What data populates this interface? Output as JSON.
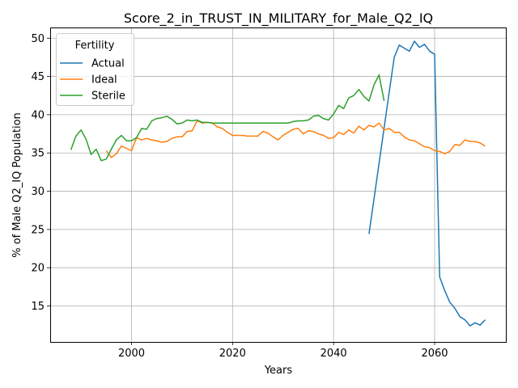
{
  "chart_data": {
    "type": "line",
    "title": "Score_2_in_TRUST_IN_MILITARY_for_Male_Q2_IQ",
    "xlabel": "Years",
    "ylabel": "% of Male Q2_IQ Population",
    "xlim": [
      1983.9,
      2074.1
    ],
    "ylim": [
      10.3,
      51.4
    ],
    "xticks": [
      2000,
      2020,
      2040,
      2060
    ],
    "yticks": [
      15,
      20,
      25,
      30,
      35,
      40,
      45,
      50
    ],
    "grid": true,
    "legend": {
      "title": "Fertility",
      "position": "top-left"
    },
    "series": [
      {
        "name": "Actual",
        "color": "#1f77b4",
        "x": [
          2047,
          2048,
          2049,
          2050,
          2051,
          2052,
          2053,
          2054,
          2055,
          2056,
          2057,
          2058,
          2059,
          2060,
          2061,
          2062,
          2063,
          2064,
          2065,
          2066,
          2067,
          2068,
          2069,
          2070
        ],
        "y": [
          24.4,
          29.0,
          33.6,
          38.3,
          42.9,
          47.5,
          49.1,
          48.7,
          48.3,
          49.6,
          48.8,
          49.2,
          48.3,
          47.9,
          18.8,
          17.0,
          15.5,
          14.7,
          13.6,
          13.2,
          12.4,
          12.8,
          12.5,
          13.2
        ]
      },
      {
        "name": "Ideal",
        "color": "#ff7f0e",
        "x": [
          1995,
          1996,
          1997,
          1998,
          1999,
          2000,
          2001,
          2002,
          2003,
          2004,
          2005,
          2006,
          2007,
          2008,
          2009,
          2010,
          2011,
          2012,
          2013,
          2014,
          2015,
          2016,
          2017,
          2018,
          2019,
          2020,
          2021,
          2022,
          2023,
          2024,
          2025,
          2026,
          2027,
          2028,
          2029,
          2030,
          2031,
          2032,
          2033,
          2034,
          2035,
          2036,
          2037,
          2038,
          2039,
          2040,
          2041,
          2042,
          2043,
          2044,
          2045,
          2046,
          2047,
          2048,
          2049,
          2050,
          2051,
          2052,
          2053,
          2054,
          2055,
          2056,
          2057,
          2058,
          2059,
          2060,
          2061,
          2062,
          2063,
          2064,
          2065,
          2066,
          2067,
          2068,
          2069,
          2070
        ],
        "y": [
          35.3,
          34.4,
          34.9,
          35.9,
          35.6,
          35.3,
          37.0,
          36.7,
          36.9,
          36.7,
          36.6,
          36.4,
          36.5,
          36.9,
          37.1,
          37.1,
          37.8,
          37.9,
          39.2,
          38.9,
          39.0,
          38.9,
          38.4,
          38.2,
          37.7,
          37.3,
          37.3,
          37.3,
          37.2,
          37.2,
          37.2,
          37.8,
          37.6,
          37.1,
          36.7,
          37.3,
          37.7,
          38.1,
          38.2,
          37.5,
          37.9,
          37.8,
          37.5,
          37.3,
          36.9,
          37.0,
          37.7,
          37.4,
          38.0,
          37.6,
          38.5,
          38.0,
          38.6,
          38.4,
          38.9,
          38.0,
          38.2,
          37.7,
          37.7,
          37.1,
          36.7,
          36.6,
          36.2,
          35.8,
          35.7,
          35.3,
          35.2,
          34.9,
          35.2,
          36.1,
          36.0,
          36.7,
          36.5,
          36.5,
          36.3,
          35.9
        ]
      },
      {
        "name": "Sterile",
        "color": "#2ca02c",
        "x": [
          1988,
          1989,
          1990,
          1991,
          1992,
          1993,
          1994,
          1995,
          1996,
          1997,
          1998,
          1999,
          2000,
          2001,
          2002,
          2003,
          2004,
          2005,
          2006,
          2007,
          2008,
          2009,
          2010,
          2011,
          2012,
          2013,
          2014,
          2015,
          2016,
          2017,
          2018,
          2019,
          2020,
          2021,
          2022,
          2023,
          2024,
          2025,
          2026,
          2027,
          2028,
          2029,
          2030,
          2031,
          2032,
          2033,
          2034,
          2035,
          2036,
          2037,
          2038,
          2039,
          2040,
          2041,
          2042,
          2043,
          2044,
          2045,
          2046,
          2047,
          2048,
          2049,
          2050
        ],
        "y": [
          35.4,
          37.2,
          38.0,
          36.8,
          34.8,
          35.5,
          34.0,
          34.2,
          35.5,
          36.7,
          37.3,
          36.6,
          36.6,
          37.0,
          38.2,
          38.1,
          39.2,
          39.5,
          39.6,
          39.8,
          39.4,
          38.8,
          38.9,
          39.3,
          39.2,
          39.3,
          39.0,
          39.0,
          38.9,
          38.9,
          38.9,
          38.9,
          38.9,
          38.9,
          38.9,
          38.9,
          38.9,
          38.9,
          38.9,
          38.9,
          38.9,
          38.9,
          38.9,
          38.9,
          39.1,
          39.2,
          39.2,
          39.3,
          39.8,
          39.9,
          39.5,
          39.3,
          40.1,
          41.2,
          40.8,
          42.2,
          42.5,
          43.3,
          42.4,
          41.8,
          43.9,
          45.2,
          41.8
        ]
      }
    ]
  }
}
